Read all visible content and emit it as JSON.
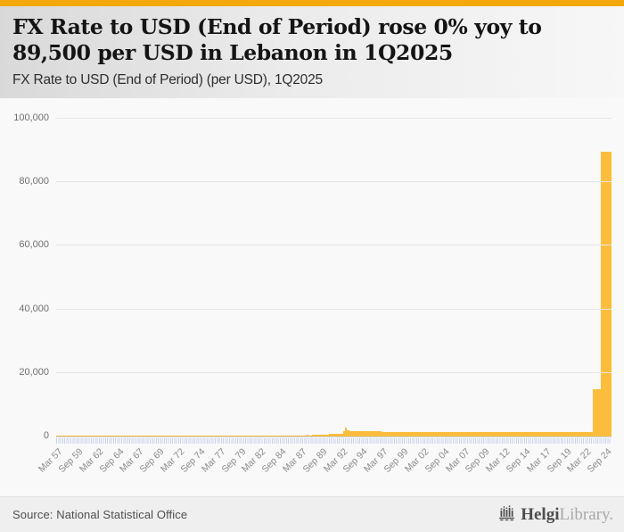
{
  "header": {
    "title": "FX Rate to USD (End of Period) rose 0% yoy to 89,500 per USD in Lebanon in 1Q2025",
    "subtitle": "FX Rate to USD (End of Period) (per USD), 1Q2025"
  },
  "chart_data": {
    "type": "bar",
    "title": "FX Rate to USD (End of Period) rose 0% yoy to 89,500 per USD in Lebanon in 1Q2025",
    "subtitle": "FX Rate to USD (End of Period) (per USD), 1Q2025",
    "indicator": "FX Rate to USD (End of Period)",
    "unit": "per USD",
    "country": "Lebanon",
    "frequency": "quarterly",
    "start_period": "Mar 1957",
    "end_period": "Mar 2025",
    "latest_value": 89500,
    "yoy_change_pct": 0,
    "ylim": [
      0,
      100000
    ],
    "y_tick_step": 20000,
    "y_tick_labels": [
      "0",
      "20,000",
      "40,000",
      "60,000",
      "80,000",
      "100,000"
    ],
    "x_tick_labels": [
      "Mar 57",
      "Sep 59",
      "Mar 62",
      "Sep 64",
      "Mar 67",
      "Sep 69",
      "Mar 72",
      "Sep 74",
      "Mar 77",
      "Sep 79",
      "Mar 82",
      "Sep 84",
      "Mar 87",
      "Sep 89",
      "Mar 92",
      "Sep 94",
      "Mar 97",
      "Sep 99",
      "Mar 02",
      "Sep 04",
      "Mar 07",
      "Sep 09",
      "Mar 12",
      "Sep 14",
      "Mar 17",
      "Sep 19",
      "Mar 22",
      "Sep 24"
    ],
    "x_tick_interval_points": 10,
    "grid": "horizontal",
    "legend": "none",
    "bar_color": "#FBBD3B",
    "values_rle_format": "[count, value] runs, quarterly end-of-period LBP per USD from Mar 1957 to Mar 2025 (273 points)",
    "values_rle": [
      [
        60,
        3.2
      ],
      [
        4,
        3.0
      ],
      [
        4,
        2.6
      ],
      [
        4,
        2.3
      ],
      [
        4,
        2.4
      ],
      [
        4,
        2.9
      ],
      [
        8,
        3.0
      ],
      [
        4,
        3.3
      ],
      [
        4,
        3.5
      ],
      [
        4,
        4.3
      ],
      [
        4,
        4.7
      ],
      [
        4,
        5.5
      ],
      [
        1,
        6.5
      ],
      [
        1,
        7.2
      ],
      [
        1,
        8.0
      ],
      [
        1,
        8.9
      ],
      [
        1,
        12
      ],
      [
        1,
        14
      ],
      [
        1,
        16
      ],
      [
        1,
        18
      ],
      [
        1,
        24
      ],
      [
        1,
        35
      ],
      [
        1,
        60
      ],
      [
        1,
        87
      ],
      [
        1,
        120
      ],
      [
        1,
        200
      ],
      [
        1,
        350
      ],
      [
        1,
        455
      ],
      [
        1,
        420
      ],
      [
        1,
        410
      ],
      [
        1,
        480
      ],
      [
        1,
        530
      ],
      [
        1,
        520
      ],
      [
        1,
        510
      ],
      [
        1,
        495
      ],
      [
        1,
        505
      ],
      [
        1,
        650
      ],
      [
        1,
        700
      ],
      [
        1,
        750
      ],
      [
        1,
        842
      ],
      [
        1,
        900
      ],
      [
        1,
        940
      ],
      [
        1,
        910
      ],
      [
        1,
        879
      ],
      [
        1,
        980
      ],
      [
        1,
        1700
      ],
      [
        1,
        2825
      ],
      [
        1,
        1838
      ],
      [
        1,
        1780
      ],
      [
        1,
        1750
      ],
      [
        1,
        1730
      ],
      [
        1,
        1711
      ],
      [
        1,
        1690
      ],
      [
        1,
        1680
      ],
      [
        1,
        1660
      ],
      [
        1,
        1647
      ],
      [
        1,
        1640
      ],
      [
        1,
        1630
      ],
      [
        1,
        1610
      ],
      [
        1,
        1596
      ],
      [
        1,
        1590
      ],
      [
        1,
        1580
      ],
      [
        1,
        1566
      ],
      [
        1,
        1552
      ],
      [
        1,
        1545
      ],
      [
        1,
        1540
      ],
      [
        1,
        1530
      ],
      [
        1,
        1527
      ],
      [
        1,
        1520
      ],
      [
        1,
        1516
      ],
      [
        1,
        1512
      ],
      [
        1,
        1508
      ],
      [
        96,
        1507.5
      ],
      [
        4,
        15000
      ],
      [
        5,
        89500
      ]
    ]
  },
  "footer": {
    "source": "Source: National Statistical Office",
    "logo": {
      "icon": "helgi-building-icon",
      "brand_bold": "Helgi",
      "brand_light": "Library."
    }
  },
  "colors": {
    "accent_bar": "#F5A80C",
    "bar_fill": "#FBBD3B",
    "axis_tick": "#c9d2ec",
    "gridline": "#e5e5e5"
  }
}
